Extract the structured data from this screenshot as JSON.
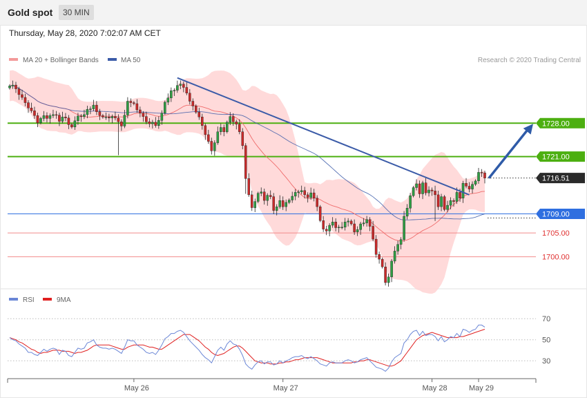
{
  "header": {
    "title": "Gold spot",
    "timeframe": "30 MIN",
    "date": "Thursday, May 28, 2020 7:02:07 AM CET"
  },
  "legend": {
    "ma20": "MA 20 + Bollinger Bands",
    "ma50": "MA 50",
    "credit": "Research © 2020 Trading Central"
  },
  "rsi_legend": {
    "rsi": "RSI",
    "ma9": "9MA"
  },
  "colors": {
    "bull": "#2f9e44",
    "bear": "#c92a2a",
    "band_fill": "#ffd4d4",
    "ma20": "#ef6b6b",
    "ma50": "#3b5ba8",
    "resistance": "#4caf10",
    "support_blue": "#2f6fe0",
    "support_red": "#f28b8b",
    "rsi": "#6a86d6",
    "rsi_ma": "#e02020"
  },
  "chart_data": {
    "type": "candlestick",
    "title": "Gold spot",
    "timeframe": "30 MIN",
    "ylim": [
      1693,
      1746
    ],
    "x_ticks": [
      "May 26",
      "May 27",
      "May 28",
      "May 29"
    ],
    "levels": [
      {
        "label": "1728.00",
        "value": 1728.0,
        "kind": "resistance"
      },
      {
        "label": "1721.00",
        "value": 1721.0,
        "kind": "resistance"
      },
      {
        "label": "1716.51",
        "value": 1716.51,
        "kind": "last"
      },
      {
        "label": "1709.00",
        "value": 1709.0,
        "kind": "support"
      },
      {
        "label": "1705.00",
        "value": 1705.0,
        "kind": "support"
      },
      {
        "label": "1700.00",
        "value": 1700.0,
        "kind": "support"
      }
    ],
    "trendline": {
      "from": 1737.5,
      "to": 1713.0
    },
    "projection": {
      "from": 1716.5,
      "to": 1728.0
    },
    "close": [
      1735.8,
      1736.0,
      1735.2,
      1734.0,
      1733.4,
      1732.3,
      1731.2,
      1730.6,
      1729.6,
      1728.1,
      1729.0,
      1729.6,
      1729.0,
      1729.6,
      1729.8,
      1729.7,
      1728.4,
      1729.3,
      1729.1,
      1727.7,
      1727.2,
      1728.5,
      1729.5,
      1729.4,
      1729.8,
      1730.9,
      1731.0,
      1731.8,
      1730.4,
      1729.6,
      1729.3,
      1729.3,
      1729.1,
      1729.4,
      1729.1,
      1728.3,
      1727.4,
      1729.7,
      1732.6,
      1732.3,
      1732.1,
      1730.8,
      1730.1,
      1729.4,
      1728.3,
      1727.9,
      1728.2,
      1727.5,
      1728.6,
      1730.1,
      1732.4,
      1733.3,
      1734.8,
      1734.9,
      1735.9,
      1736.2,
      1735.5,
      1734.3,
      1732.6,
      1731.6,
      1730.3,
      1729.3,
      1727.5,
      1725.6,
      1724.2,
      1722.2,
      1723.9,
      1726.2,
      1727.1,
      1726.2,
      1728.2,
      1729.4,
      1728.3,
      1727.8,
      1726.2,
      1723.3,
      1716.4,
      1713.0,
      1710.3,
      1711.6,
      1713.3,
      1713.6,
      1711.8,
      1712.9,
      1712.6,
      1709.7,
      1710.5,
      1711.8,
      1710.5,
      1711.4,
      1711.9,
      1712.7,
      1713.5,
      1713.6,
      1713.9,
      1713.0,
      1712.4,
      1713.4,
      1712.3,
      1710.5,
      1707.6,
      1705.8,
      1705.4,
      1706.6,
      1707.3,
      1706.1,
      1706.2,
      1706.2,
      1707.3,
      1707.5,
      1706.9,
      1705.2,
      1705.7,
      1706.9,
      1707.1,
      1707.8,
      1706.4,
      1703.7,
      1700.5,
      1699.5,
      1697.9,
      1694.6,
      1695.8,
      1699.1,
      1701.2,
      1702.6,
      1703.6,
      1708.5,
      1710.2,
      1712.8,
      1714.5,
      1715.3,
      1713.2,
      1715.5,
      1713.4,
      1714.0,
      1713.8,
      1713.0,
      1710.5,
      1712.6,
      1709.9,
      1710.8,
      1711.8,
      1711.6,
      1713.5,
      1712.3,
      1715.4,
      1714.8,
      1714.2,
      1715.2,
      1715.9,
      1717.7,
      1717.6,
      1716.5
    ],
    "rsi_ylim": [
      15,
      80
    ],
    "rsi_ticks": [
      70,
      50,
      30
    ],
    "rsi": [
      52,
      50,
      49,
      46,
      44,
      42,
      38,
      38,
      36,
      35,
      38,
      41,
      39,
      41,
      42,
      41,
      36,
      40,
      39,
      35,
      34,
      38,
      42,
      41,
      42,
      47,
      48,
      50,
      45,
      43,
      42,
      42,
      41,
      42,
      41,
      39,
      37,
      43,
      50,
      49,
      49,
      45,
      43,
      41,
      38,
      37,
      38,
      36,
      40,
      45,
      51,
      53,
      56,
      56,
      58,
      59,
      57,
      53,
      49,
      46,
      43,
      40,
      36,
      33,
      31,
      28,
      34,
      40,
      43,
      40,
      46,
      49,
      46,
      45,
      41,
      35,
      27,
      24,
      22,
      26,
      29,
      30,
      27,
      29,
      29,
      26,
      27,
      30,
      28,
      30,
      31,
      33,
      34,
      34,
      35,
      33,
      32,
      34,
      32,
      30,
      27,
      26,
      25,
      28,
      29,
      28,
      28,
      28,
      30,
      31,
      30,
      28,
      29,
      31,
      32,
      33,
      30,
      27,
      24,
      23,
      22,
      20,
      23,
      29,
      33,
      35,
      37,
      47,
      50,
      55,
      58,
      59,
      54,
      58,
      54,
      55,
      55,
      53,
      49,
      53,
      48,
      50,
      53,
      52,
      56,
      53,
      60,
      59,
      57,
      59,
      60,
      64,
      64,
      62
    ],
    "rsi_ma": [
      52,
      51,
      50,
      48,
      47,
      45,
      43,
      41,
      40,
      38,
      37,
      38,
      38,
      39,
      40,
      40,
      40,
      39,
      39,
      39,
      38,
      37,
      38,
      38,
      39,
      40,
      42,
      44,
      45,
      45,
      45,
      45,
      45,
      44,
      43,
      42,
      41,
      41,
      43,
      44,
      45,
      45,
      45,
      45,
      44,
      43,
      43,
      42,
      41,
      41,
      43,
      45,
      47,
      49,
      51,
      53,
      55,
      55,
      55,
      53,
      51,
      49,
      46,
      43,
      41,
      38,
      36,
      35,
      36,
      37,
      39,
      41,
      43,
      44,
      44,
      42,
      39,
      36,
      33,
      30,
      29,
      28,
      28,
      28,
      27,
      27,
      27,
      28,
      28,
      29,
      29,
      30,
      31,
      31,
      32,
      33,
      33,
      33,
      33,
      33,
      32,
      31,
      30,
      29,
      28,
      28,
      28,
      28,
      28,
      28,
      28,
      29,
      29,
      30,
      30,
      31,
      31,
      30,
      29,
      28,
      27,
      26,
      25,
      25,
      26,
      28,
      30,
      34,
      38,
      42,
      46,
      50,
      52,
      54,
      55,
      56,
      57,
      56,
      55,
      54,
      53,
      52,
      52,
      52,
      52,
      53,
      53,
      54,
      55,
      56,
      57,
      58,
      59,
      60
    ]
  }
}
